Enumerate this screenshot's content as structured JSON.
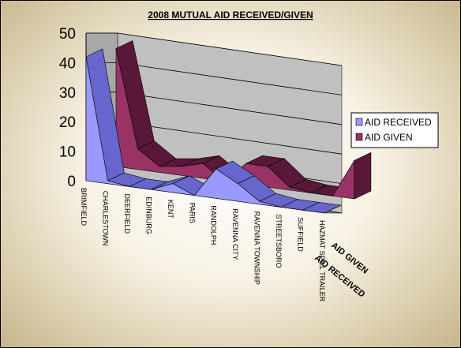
{
  "chart_data": {
    "type": "area",
    "title": "2008 MUTUAL AID RECEIVED/GIVEN",
    "categories": [
      "BRIMFIELD",
      "CHARLESTOWN",
      "DEERFIELD",
      "EDINBURG",
      "KENT",
      "PARIS",
      "RANDOLPH",
      "RAVENNA CITY",
      "RAVENNA TOWNSHIP",
      "STREETSBORO",
      "SUFFIELD",
      "HAZMAT SPILL TRAILER"
    ],
    "series": [
      {
        "name": "AID RECEIVED",
        "values": [
          42,
          1,
          0,
          0,
          3,
          0,
          10,
          6,
          1,
          0,
          0,
          0
        ],
        "color": "#9999ff",
        "dark": "#6666cc"
      },
      {
        "name": "AID GIVEN",
        "values": [
          40,
          7,
          2,
          3,
          5,
          0,
          7,
          7,
          1,
          0,
          0,
          13
        ],
        "color": "#993366",
        "dark": "#5a1838"
      }
    ],
    "depth_labels": [
      "AID RECEIVED",
      "AID GIVEN"
    ],
    "ylim": [
      0,
      50
    ],
    "yticks": [
      0,
      10,
      20,
      30,
      40,
      50
    ],
    "gridlines": true,
    "legend": "right"
  }
}
